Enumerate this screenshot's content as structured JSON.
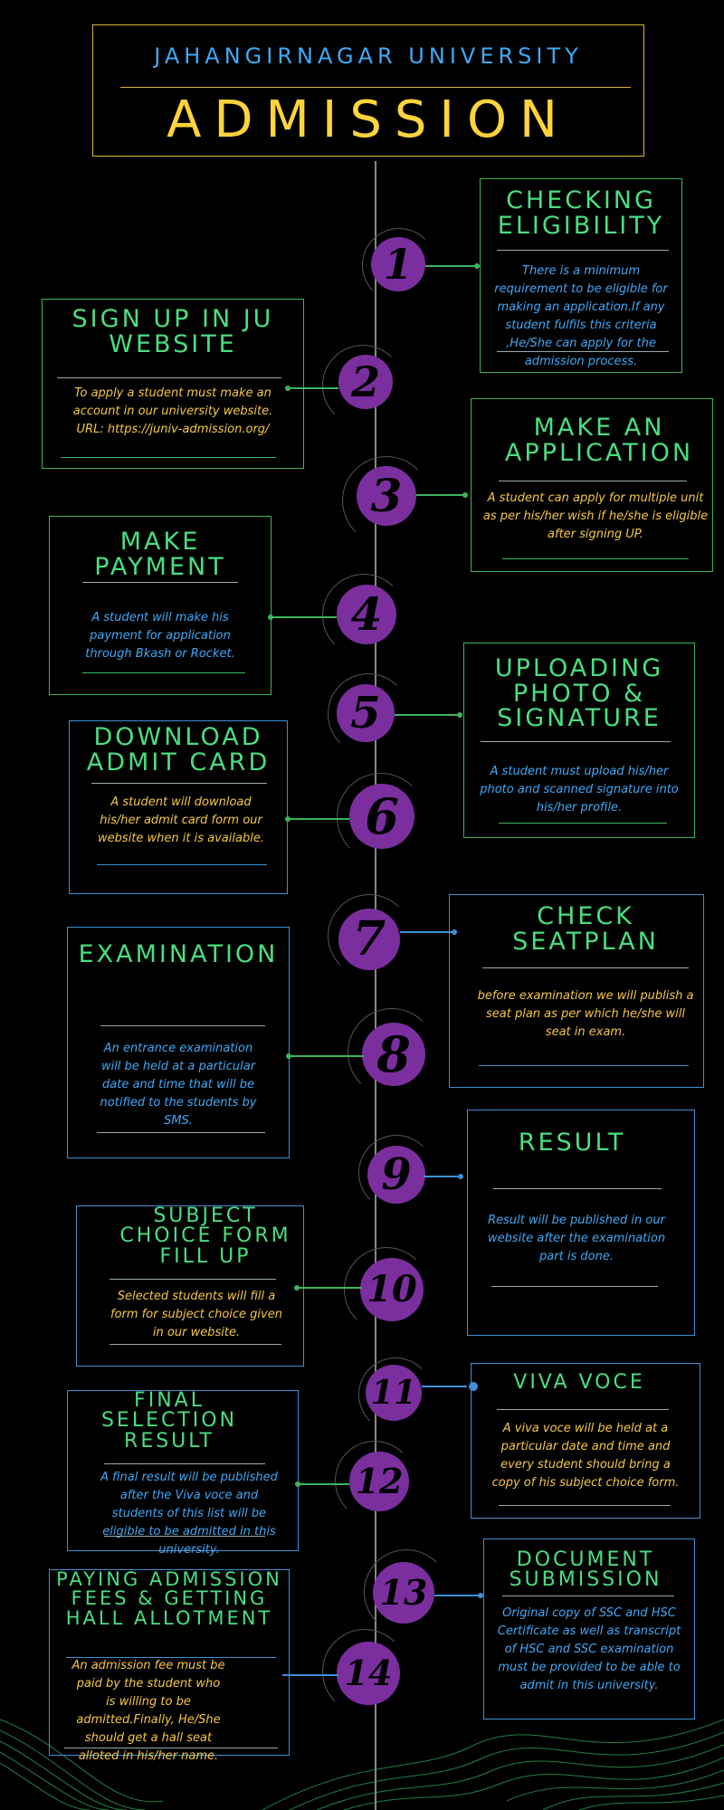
{
  "header": {
    "university": "JAHANGIRNAGAR UNIVERSITY",
    "title": "ADMISSION"
  },
  "steps": [
    {
      "number": "1",
      "title": "CHECKING ELIGIBILITY",
      "description": "There is a minimum requirement to be eligible for making an application.If any student fulfils this criteria ,He/She can apply for the admission process."
    },
    {
      "number": "2",
      "title": "SIGN UP IN JU WEBSITE",
      "description": "To apply a student must make an account in our university website. URL:  https://juniv-admission.org/"
    },
    {
      "number": "3",
      "title": "MAKE AN APPLICATION",
      "description": "A student can apply for multiple unit as per his/her wish if he/she is eligible after signing UP."
    },
    {
      "number": "4",
      "title": "MAKE PAYMENT",
      "description": "A student will make his payment for application through Bkash or Rocket."
    },
    {
      "number": "5",
      "title": "UPLOADING PHOTO & SIGNATURE",
      "description": "A student must upload his/her photo and scanned signature into his/her profile."
    },
    {
      "number": "6",
      "title": "DOWNLOAD ADMIT CARD",
      "description": "A student will download his/her admit card form our website when it is available."
    },
    {
      "number": "7",
      "title": "CHECK SEATPLAN",
      "description": "before examination we will publish a seat plan as per which he/she will seat in exam."
    },
    {
      "number": "8",
      "title": "EXAMINATION",
      "description": "An entrance examination will be held at a particular date and time that will be notified to the students by SMS."
    },
    {
      "number": "9",
      "title": "RESULT",
      "description": "Result will be published in our website after the examination part is done."
    },
    {
      "number": "10",
      "title": "SUBJECT CHOICE FORM FILL UP",
      "description": "Selected students will fill a form for subject choice given in our website."
    },
    {
      "number": "11",
      "title": "VIVA VOCE",
      "description": "A viva voce will be held at a particular date and time and every student should bring a copy of his subject choice form."
    },
    {
      "number": "12",
      "title": "FINAL SELECTION RESULT",
      "description": "A final result will be published after the Viva voce  and students of this list will be eligible to be admitted in this university."
    },
    {
      "number": "13",
      "title": "DOCUMENT SUBMISSION",
      "description": "Original copy of SSC and HSC Certificate as well as transcript of HSC and SSC examination must be provided to be able to admit in this university."
    },
    {
      "number": "14",
      "title": "PAYING ADMISSION FEES & GETTING HALL ALLOTMENT",
      "description": "An admission fee must be paid by the student who is willing to be admitted.Finally, He/She should get a hall seat alloted in his/her name."
    }
  ],
  "colors": {
    "background": "#000000",
    "header_border": "#d9b53a",
    "header_subtitle": "#3fa9f5",
    "header_title": "#ffd43b",
    "step_title": "#4ade80",
    "step_circle": "#7b2f9e",
    "card_green": "#3cb55a",
    "card_blue": "#3f8fd4",
    "text_blue": "#3fa9f5",
    "text_yellow": "#f5c842"
  }
}
